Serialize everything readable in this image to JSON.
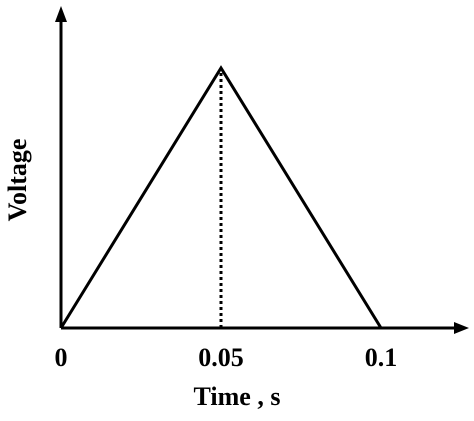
{
  "chart_data": {
    "type": "line",
    "title": "",
    "xlabel": "Time , s",
    "ylabel": "Voltage",
    "x_ticks": [
      "0",
      "0.05",
      "0.1"
    ],
    "xlim": [
      0,
      0.1
    ],
    "series": [
      {
        "x": [
          0,
          0.05,
          0.1
        ],
        "y": [
          0,
          1,
          0
        ]
      }
    ],
    "annotations": [
      {
        "type": "vertical-dotted-line",
        "x": 0.05,
        "y_from": 0,
        "y_to": 1
      }
    ],
    "grid": false,
    "legend": "none",
    "y_ticks_shown": false,
    "color": "#000000"
  }
}
